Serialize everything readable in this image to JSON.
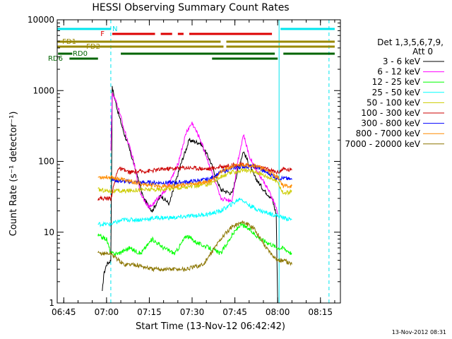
{
  "chart_data": {
    "type": "line",
    "title": "HESSI Observing Summary Count Rates",
    "xlabel": "Start Time (13-Nov-12 06:42:42)",
    "ylabel": "Count Rate (s⁻¹ detector⁻¹)",
    "yscale": "log",
    "ylim": [
      1,
      10000
    ],
    "xlim": [
      "06:42:42",
      "08:22:00"
    ],
    "x_ticks": [
      "06:45",
      "07:00",
      "07:15",
      "07:30",
      "07:45",
      "08:00",
      "08:15"
    ],
    "y_ticks": [
      "1",
      "10",
      "100",
      "1000",
      "10000"
    ],
    "grid": false,
    "legend_position": "right",
    "legend_title_1": "Det 1,3,5,6,7,9,",
    "legend_title_2": "Att 0",
    "footer_date": "13-Nov-2012 08:31",
    "series": [
      {
        "name": "3 - 6 keV",
        "color": "#000000",
        "x": [
          "06:58:30",
          "06:59:00",
          "07:00:00",
          "07:01:30",
          "07:02:00",
          "07:04:00",
          "07:06:00",
          "07:08:00",
          "07:10:00",
          "07:13:00",
          "07:16:00",
          "07:19:00",
          "07:22:00",
          "07:26:00",
          "07:29:00",
          "07:33:00",
          "07:36:00",
          "07:40:00",
          "07:44:00",
          "07:46:00",
          "07:48:00",
          "07:50:00",
          "07:52:00",
          "07:55:00",
          "07:58:00",
          "07:59:30",
          "08:00:00"
        ],
        "values": [
          1.4,
          2.5,
          3.5,
          4,
          1100,
          500,
          260,
          150,
          80,
          30,
          20,
          33,
          25,
          90,
          200,
          180,
          110,
          40,
          35,
          75,
          140,
          90,
          60,
          40,
          30,
          18,
          1
        ]
      },
      {
        "name": "6 - 12 keV",
        "color": "#ff00ff",
        "x": [
          "07:01:30",
          "07:02:00",
          "07:04:00",
          "07:06:00",
          "07:09:00",
          "07:12:00",
          "07:15:00",
          "07:18:00",
          "07:21:00",
          "07:25:00",
          "07:28:00",
          "07:30:00",
          "07:33:00",
          "07:36:00",
          "07:40:00",
          "07:44:00",
          "07:46:00",
          "07:48:00",
          "07:50:00",
          "07:53:00",
          "07:56:00",
          "07:59:00",
          "08:00:00"
        ],
        "values": [
          150,
          900,
          600,
          300,
          120,
          35,
          22,
          30,
          40,
          90,
          260,
          350,
          200,
          90,
          30,
          28,
          100,
          240,
          120,
          70,
          45,
          25,
          18
        ]
      },
      {
        "name": "12 - 25 keV",
        "color": "#00ff00",
        "x": [
          "06:57:00",
          "07:00:00",
          "07:01:30",
          "07:04:00",
          "07:08:00",
          "07:12:00",
          "07:16:00",
          "07:20:00",
          "07:24:00",
          "07:28:00",
          "07:32:00",
          "07:36:00",
          "07:40:00",
          "07:44:00",
          "07:47:00",
          "07:50:00",
          "07:54:00",
          "07:57:00",
          "08:00:00",
          "08:02:00",
          "08:05:00"
        ],
        "values": [
          9,
          8,
          5,
          5,
          6,
          5,
          8,
          6,
          5,
          9,
          7,
          6,
          5,
          9,
          13,
          11,
          8,
          7,
          6,
          6,
          5
        ]
      },
      {
        "name": "25 - 50 keV",
        "color": "#00ffff",
        "x": [
          "06:57:00",
          "07:01:30",
          "07:06:00",
          "07:12:00",
          "07:18:00",
          "07:24:00",
          "07:30:00",
          "07:36:00",
          "07:40:00",
          "07:44:00",
          "07:47:00",
          "07:50:00",
          "07:54:00",
          "07:58:00",
          "08:02:00",
          "08:05:00"
        ],
        "values": [
          13,
          13,
          15,
          15,
          16,
          16,
          17,
          18,
          20,
          25,
          30,
          24,
          20,
          18,
          16,
          15
        ]
      },
      {
        "name": "50 - 100 keV",
        "color": "#cccc00",
        "x": [
          "06:57:00",
          "07:01:30",
          "07:06:00",
          "07:12:00",
          "07:18:00",
          "07:24:00",
          "07:30:00",
          "07:36:00",
          "07:40:00",
          "07:44:00",
          "07:48:00",
          "07:52:00",
          "07:56:00",
          "08:00:00",
          "08:02:00",
          "08:05:00"
        ],
        "values": [
          40,
          38,
          38,
          40,
          40,
          42,
          44,
          48,
          60,
          70,
          75,
          72,
          62,
          52,
          35,
          38
        ]
      },
      {
        "name": "100 - 300 keV",
        "color": "#cc0000",
        "x": [
          "06:57:00",
          "07:01:30",
          "07:04:00",
          "07:08:00",
          "07:12:00",
          "07:16:00",
          "07:20:00",
          "07:24:00",
          "07:28:00",
          "07:32:00",
          "07:36:00",
          "07:40:00",
          "07:44:00",
          "07:48:00",
          "07:52:00",
          "07:56:00",
          "08:00:00",
          "08:02:00",
          "08:05:00"
        ],
        "values": [
          30,
          30,
          80,
          70,
          72,
          74,
          78,
          80,
          82,
          80,
          78,
          84,
          88,
          90,
          85,
          78,
          70,
          78,
          75
        ]
      },
      {
        "name": "300 - 800 keV",
        "color": "#0000ff",
        "x": [
          "07:02:00",
          "07:06:00",
          "07:12:00",
          "07:18:00",
          "07:24:00",
          "07:30:00",
          "07:36:00",
          "07:40:00",
          "07:44:00",
          "07:48:00",
          "07:52:00",
          "07:56:00",
          "08:00:00",
          "08:02:00",
          "08:05:00"
        ],
        "values": [
          55,
          52,
          50,
          50,
          50,
          52,
          56,
          70,
          80,
          85,
          85,
          70,
          58,
          58,
          55
        ]
      },
      {
        "name": "800 - 7000 keV",
        "color": "#ff8c00",
        "x": [
          "06:57:00",
          "07:01:30",
          "07:06:00",
          "07:12:00",
          "07:18:00",
          "07:24:00",
          "07:30:00",
          "07:36:00",
          "07:40:00",
          "07:44:00",
          "07:48:00",
          "07:52:00",
          "07:56:00",
          "08:00:00",
          "08:02:00",
          "08:05:00"
        ],
        "values": [
          60,
          60,
          55,
          48,
          45,
          45,
          48,
          52,
          70,
          85,
          90,
          88,
          75,
          60,
          45,
          45
        ]
      },
      {
        "name": "7000 - 20000 keV",
        "color": "#8b7500",
        "x": [
          "06:57:00",
          "07:01:30",
          "07:06:00",
          "07:10:00",
          "07:16:00",
          "07:22:00",
          "07:28:00",
          "07:34:00",
          "07:40:00",
          "07:44:00",
          "07:48:00",
          "07:52:00",
          "07:56:00",
          "08:00:00",
          "08:02:00",
          "08:05:00"
        ],
        "values": [
          5,
          5,
          3.5,
          3.5,
          3,
          3,
          3,
          3.5,
          8,
          12,
          14,
          11,
          6,
          4,
          4,
          3.5
        ]
      }
    ],
    "flags": [
      {
        "label": "N",
        "color": "#00e5ee",
        "segments": [
          [
            "06:42:42",
            "07:01:30"
          ],
          [
            "08:01:00",
            "08:20:00"
          ]
        ]
      },
      {
        "label": "F",
        "color": "#dd0000",
        "segments": [
          [
            "07:02:00",
            "07:17:00"
          ],
          [
            "07:19:00",
            "07:23:00"
          ],
          [
            "07:25:00",
            "07:27:00"
          ],
          [
            "07:29:00",
            "07:58:00"
          ]
        ]
      },
      {
        "label": "FD1",
        "color": "#998800",
        "segments": [
          [
            "06:42:42",
            "07:40:00"
          ],
          [
            "07:42:00",
            "08:20:00"
          ]
        ]
      },
      {
        "label": "FD2",
        "color": "#998800",
        "segments": [
          [
            "06:42:42",
            "07:41:00"
          ],
          [
            "07:42:00",
            "08:20:00"
          ]
        ]
      },
      {
        "label": "RD0",
        "color": "#006400",
        "segments": [
          [
            "06:43:00",
            "06:48:00"
          ],
          [
            "07:05:00",
            "07:59:00"
          ],
          [
            "08:02:00",
            "08:20:00"
          ]
        ]
      },
      {
        "label": "RD6",
        "color": "#006400",
        "segments": [
          [
            "06:47:00",
            "06:57:00"
          ],
          [
            "07:37:00",
            "08:00:00"
          ]
        ]
      }
    ],
    "vertical_markers": [
      {
        "x": "06:42:42",
        "color": "#00e5ee",
        "style": "solid"
      },
      {
        "x": "07:01:30",
        "color": "#00e5ee",
        "style": "dashed"
      },
      {
        "x": "08:00:30",
        "color": "#00e5ee",
        "style": "solid"
      },
      {
        "x": "08:18:00",
        "color": "#00e5ee",
        "style": "dashed"
      }
    ]
  }
}
